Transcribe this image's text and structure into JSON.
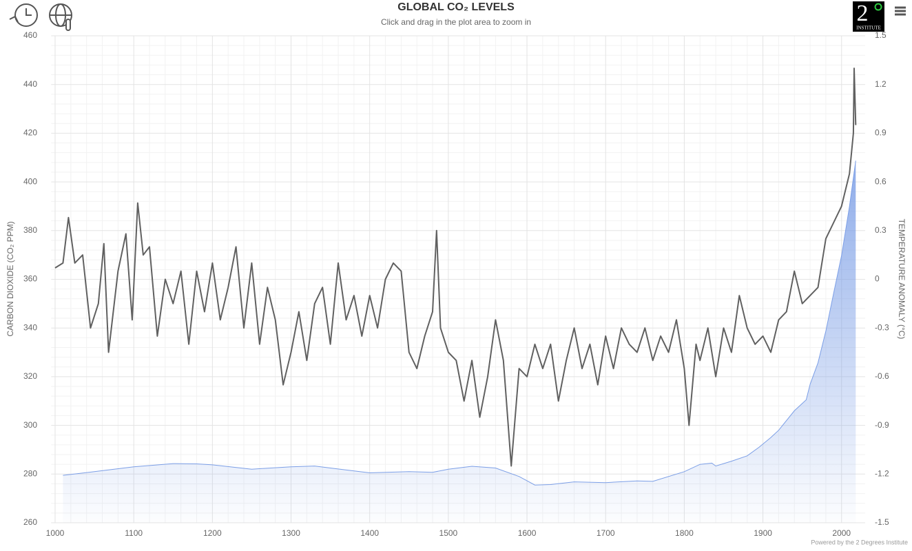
{
  "chart_data": {
    "type": "area-line",
    "title": "GLOBAL CO₂ LEVELS",
    "subtitle": "Click and drag in the plot area to zoom in",
    "y_label": "CARBON DIOXIDE (CO₂ PPM)",
    "y2_label": "TEMPERATURE ANOMALY (°C)",
    "credits": "Powered by the 2 Degrees Institute",
    "logo": {
      "numeral": "2",
      "text": "INSTITUTE"
    },
    "grid": true,
    "xlim": [
      995,
      2030
    ],
    "xticks": [
      1000,
      1100,
      1200,
      1300,
      1400,
      1500,
      1600,
      1700,
      1800,
      1900,
      2000
    ],
    "ylim": [
      260,
      460
    ],
    "yticks": [
      260,
      280,
      300,
      320,
      340,
      360,
      380,
      400,
      420,
      440,
      460
    ],
    "y2lim": [
      -1.5,
      1.5
    ],
    "y2ticks": [
      -1.5,
      -1.2,
      -0.9,
      -0.6,
      -0.3,
      0,
      0.3,
      0.6,
      0.9,
      1.2,
      1.5
    ],
    "series": [
      {
        "axis": "y",
        "color": "#7b9ee6",
        "x": [
          1010,
          1050,
          1100,
          1150,
          1180,
          1200,
          1250,
          1300,
          1330,
          1350,
          1400,
          1450,
          1480,
          1500,
          1530,
          1560,
          1590,
          1610,
          1630,
          1660,
          1700,
          1740,
          1760,
          1800,
          1820,
          1835,
          1840,
          1860,
          1880,
          1895,
          1910,
          1920,
          1940,
          1955,
          1960,
          1970,
          1980,
          1990,
          2000,
          2010,
          2018
        ],
        "values": [
          279.5,
          281,
          283,
          284.3,
          284.2,
          283.8,
          282,
          283,
          283.3,
          282.5,
          280.5,
          281,
          280.7,
          282,
          283.2,
          282.5,
          279,
          275.5,
          275.7,
          276.8,
          276.5,
          277.2,
          277,
          281,
          284,
          284.5,
          283.3,
          285.3,
          287.5,
          291,
          295,
          298,
          306,
          310.5,
          316.9,
          325.7,
          338.7,
          354.4,
          369.7,
          389.9,
          408.7
        ]
      },
      {
        "axis": "y2",
        "color": "#606060",
        "x": [
          1000,
          1010,
          1017,
          1025,
          1035,
          1045,
          1055,
          1062,
          1068,
          1080,
          1090,
          1098,
          1105,
          1112,
          1120,
          1130,
          1140,
          1150,
          1160,
          1170,
          1180,
          1190,
          1200,
          1210,
          1220,
          1230,
          1240,
          1250,
          1260,
          1270,
          1280,
          1290,
          1300,
          1310,
          1320,
          1330,
          1340,
          1350,
          1360,
          1370,
          1380,
          1390,
          1400,
          1410,
          1420,
          1430,
          1440,
          1450,
          1460,
          1470,
          1480,
          1485,
          1490,
          1500,
          1510,
          1520,
          1530,
          1540,
          1550,
          1560,
          1570,
          1580,
          1590,
          1600,
          1610,
          1620,
          1630,
          1640,
          1650,
          1660,
          1670,
          1680,
          1690,
          1700,
          1710,
          1720,
          1730,
          1740,
          1750,
          1760,
          1770,
          1780,
          1790,
          1800,
          1806,
          1815,
          1820,
          1830,
          1840,
          1850,
          1860,
          1870,
          1880,
          1890,
          1900,
          1910,
          1920,
          1930,
          1940,
          1950,
          1960,
          1970,
          1980,
          1990,
          2000,
          2010,
          2015,
          2016,
          2018
        ],
        "values": [
          0.07,
          0.1,
          0.38,
          0.1,
          0.15,
          -0.3,
          -0.15,
          0.22,
          -0.45,
          0.05,
          0.28,
          -0.25,
          0.47,
          0.15,
          0.2,
          -0.35,
          0.0,
          -0.15,
          0.05,
          -0.4,
          0.05,
          -0.2,
          0.1,
          -0.25,
          -0.05,
          0.2,
          -0.3,
          0.1,
          -0.4,
          -0.05,
          -0.25,
          -0.65,
          -0.45,
          -0.2,
          -0.5,
          -0.15,
          -0.05,
          -0.4,
          0.1,
          -0.25,
          -0.1,
          -0.35,
          -0.1,
          -0.3,
          0.0,
          0.1,
          0.05,
          -0.45,
          -0.55,
          -0.35,
          -0.2,
          0.3,
          -0.3,
          -0.45,
          -0.5,
          -0.75,
          -0.5,
          -0.85,
          -0.6,
          -0.25,
          -0.5,
          -1.15,
          -0.55,
          -0.6,
          -0.4,
          -0.55,
          -0.4,
          -0.75,
          -0.5,
          -0.3,
          -0.55,
          -0.4,
          -0.65,
          -0.35,
          -0.55,
          -0.3,
          -0.4,
          -0.45,
          -0.3,
          -0.5,
          -0.35,
          -0.45,
          -0.25,
          -0.55,
          -0.9,
          -0.4,
          -0.5,
          -0.3,
          -0.6,
          -0.3,
          -0.45,
          -0.1,
          -0.3,
          -0.4,
          -0.35,
          -0.45,
          -0.25,
          -0.2,
          0.05,
          -0.15,
          -0.1,
          -0.05,
          0.25,
          0.35,
          0.45,
          0.65,
          0.9,
          1.3,
          0.95
        ]
      }
    ]
  }
}
